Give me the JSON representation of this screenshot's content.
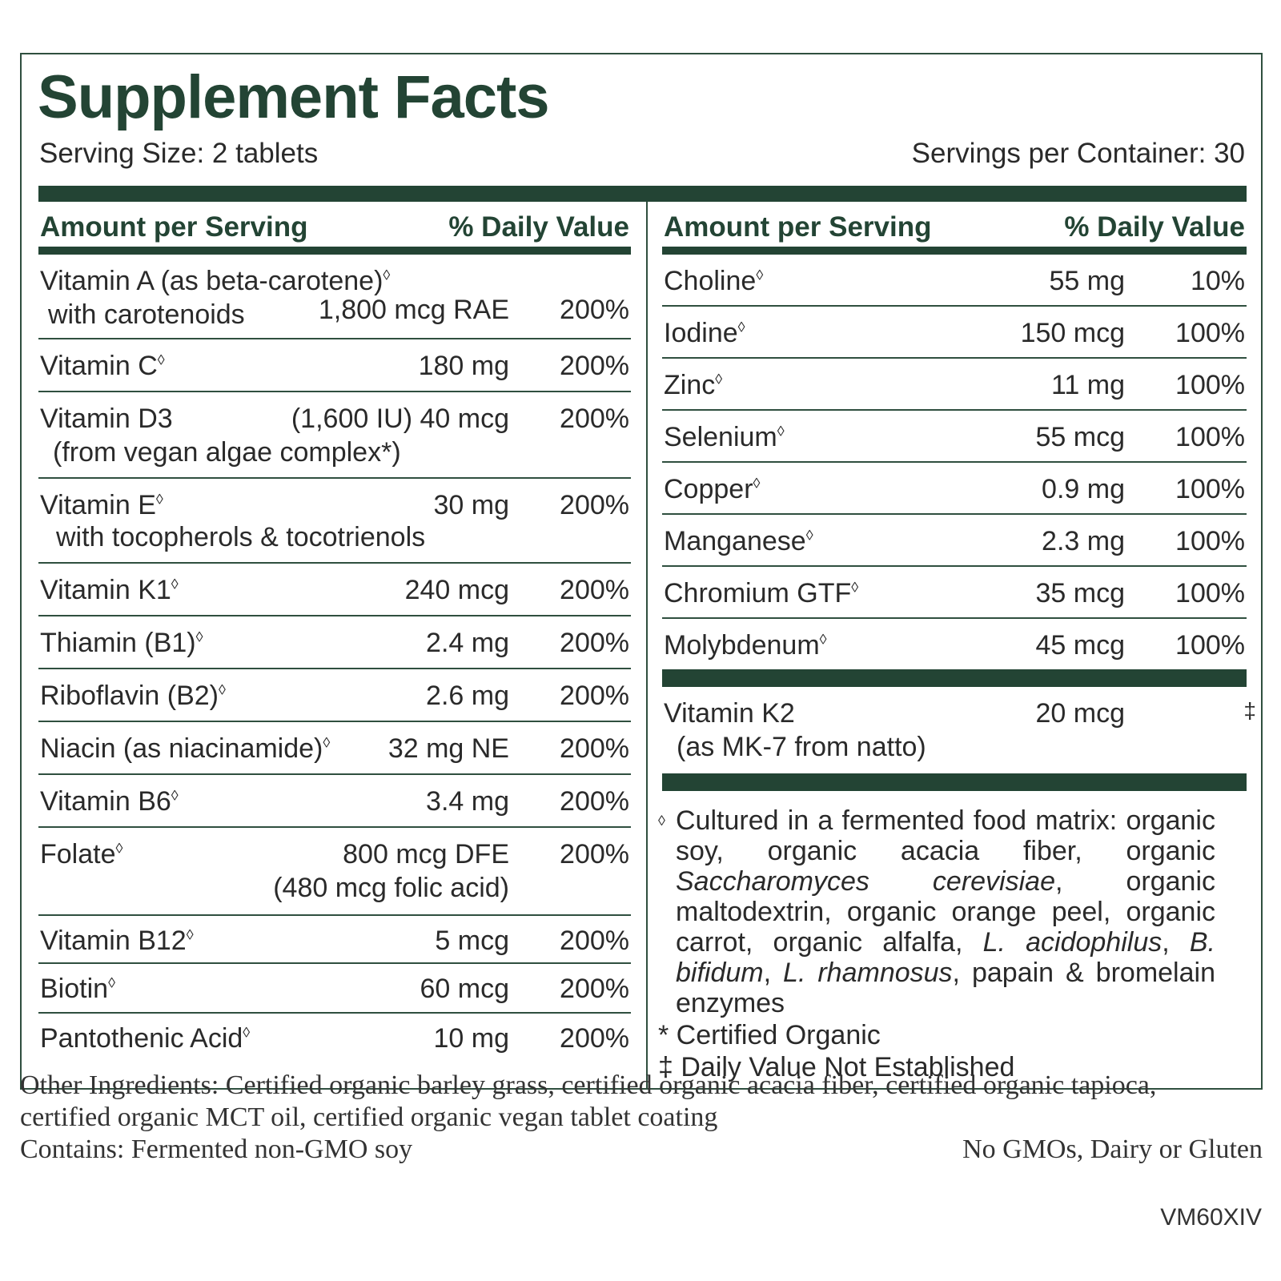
{
  "title": "Supplement Facts",
  "serving_size": "Serving Size: 2 tablets",
  "servings_per_container": "Servings per Container: 30",
  "headers": {
    "amount": "Amount per Serving",
    "dv": "% Daily Value"
  },
  "marker": "◊",
  "left": [
    {
      "name": "Vitamin A (as beta-carotene)",
      "sub": "with carotenoids",
      "amount": "1,800 mcg RAE",
      "dv": "200%"
    },
    {
      "name": "Vitamin C",
      "amount": "180 mg",
      "dv": "200%"
    },
    {
      "name": "Vitamin D3",
      "extra": "(1,600 IU)",
      "amount": "40 mcg",
      "sub": "(from vegan algae complex*)",
      "dv": "200%"
    },
    {
      "name": "Vitamin E",
      "amount": "30 mg",
      "sub": "with tocopherols & tocotrienols",
      "dv": "200%"
    },
    {
      "name": "Vitamin K1",
      "amount": "240 mcg",
      "dv": "200%"
    },
    {
      "name": "Thiamin (B1)",
      "amount": "2.4 mg",
      "dv": "200%"
    },
    {
      "name": "Riboflavin (B2)",
      "amount": "2.6 mg",
      "dv": "200%"
    },
    {
      "name": "Niacin (as niacinamide)",
      "amount": "32 mg NE",
      "dv": "200%"
    },
    {
      "name": "Vitamin B6",
      "amount": "3.4 mg",
      "dv": "200%"
    },
    {
      "name": "Folate",
      "amount": "800 mcg DFE",
      "sub": "(480 mcg folic acid)",
      "dv": "200%"
    },
    {
      "name": "Vitamin B12",
      "amount": "5 mcg",
      "dv": "200%"
    },
    {
      "name": "Biotin",
      "amount": "60 mcg",
      "dv": "200%"
    },
    {
      "name": "Pantothenic Acid",
      "amount": "10 mg",
      "dv": "200%"
    }
  ],
  "right": [
    {
      "name": "Choline",
      "amount": "55 mg",
      "dv": "10%"
    },
    {
      "name": "Iodine",
      "amount": "150 mcg",
      "dv": "100%"
    },
    {
      "name": "Zinc",
      "amount": "11 mg",
      "dv": "100%"
    },
    {
      "name": "Selenium",
      "amount": "55 mcg",
      "dv": "100%"
    },
    {
      "name": "Copper",
      "amount": "0.9 mg",
      "dv": "100%"
    },
    {
      "name": "Manganese",
      "amount": "2.3 mg",
      "dv": "100%"
    },
    {
      "name": "Chromium GTF",
      "amount": "35 mcg",
      "dv": "100%"
    },
    {
      "name": "Molybdenum",
      "amount": "45 mcg",
      "dv": "100%"
    }
  ],
  "k2": {
    "name": "Vitamin K2",
    "sub": "(as MK-7 from natto)",
    "amount": "20 mcg",
    "dv": "‡"
  },
  "footnotes": {
    "cultured": {
      "p1": "Cultured in a fermented food matrix: organic soy, organic acacia fiber, organic ",
      "i1": "Saccharomyces cerevisiae",
      "p2": ", organic maltodextrin, organic orange peel, organic carrot, organic alfalfa, ",
      "i2": "L. acidophilus",
      "p3": ", ",
      "i3": "B. bifidum",
      "p4": ", ",
      "i4": "L. rhamnosus",
      "p5": ", papain & bromelain enzymes"
    },
    "organic": "* Certified Organic",
    "dv_note": "‡ Daily Value Not Established"
  },
  "other": {
    "line1": "Other Ingredients: Certified organic barley grass, certified organic acacia fiber, certified organic tapioca,",
    "line2": "certified organic MCT oil, certified organic vegan tablet coating",
    "contains": "Contains: Fermented non-GMO soy",
    "free_of": "No GMOs, Dairy or Gluten"
  },
  "code": "VM60XIV",
  "colors": {
    "brand_green": "#234434",
    "rule": "#2f4f3f",
    "text": "#2a2a2a"
  }
}
